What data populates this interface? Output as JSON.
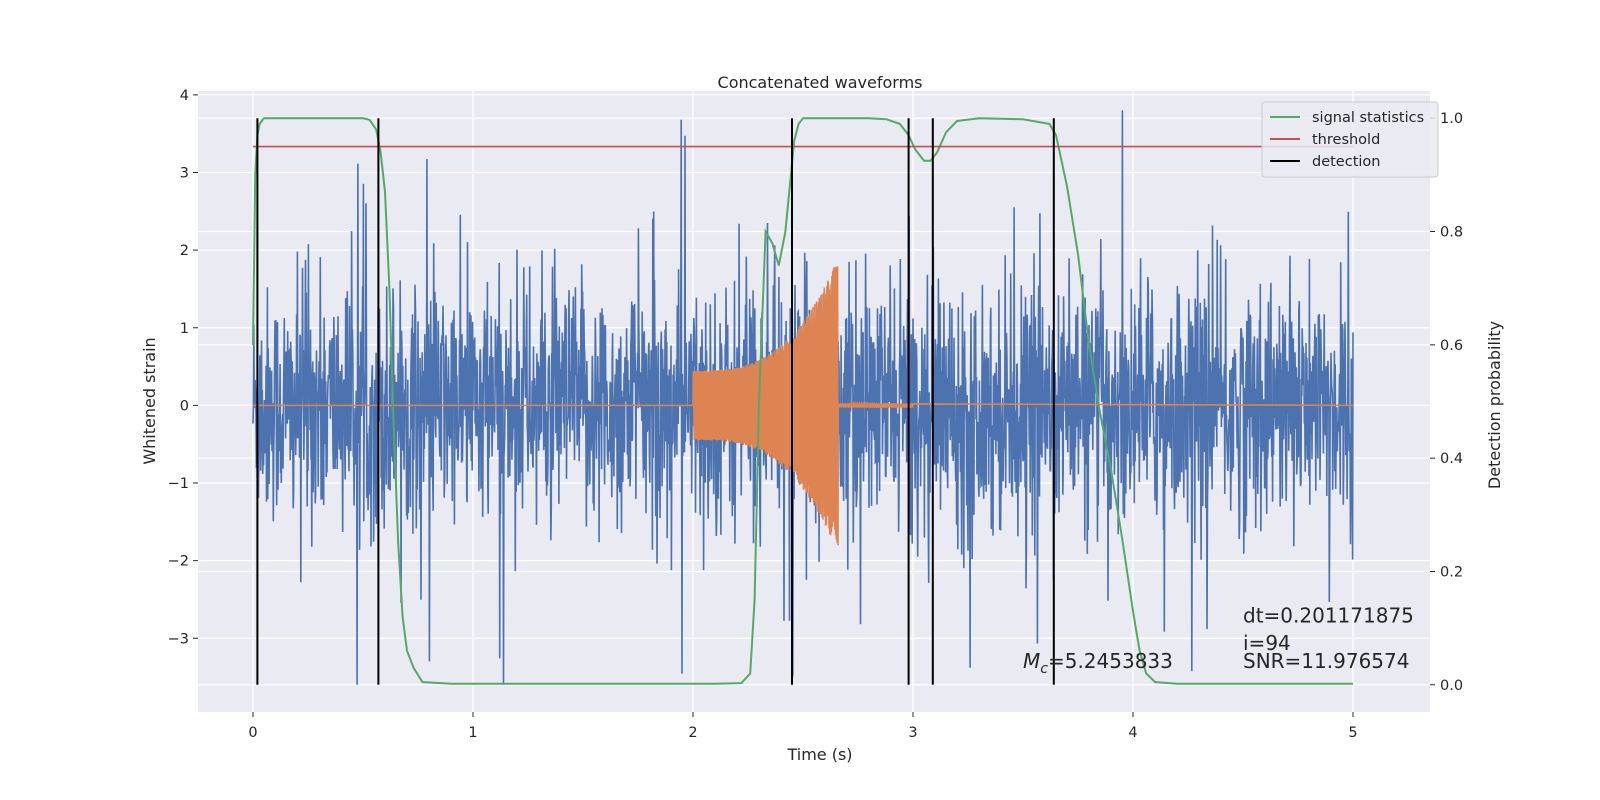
{
  "chart_data": {
    "type": "line",
    "title": "Concatenated waveforms",
    "xlabel": "Time (s)",
    "ylabel": "Whitened strain",
    "y2label": "Detection probability",
    "xlim": [
      -0.25,
      5.35
    ],
    "ylim": [
      -3.95,
      4.05
    ],
    "y2lim": [
      -0.048,
      1.048
    ],
    "x_ticks": [
      0,
      1,
      2,
      3,
      4,
      5
    ],
    "y_ticks": [
      -3,
      -2,
      -1,
      0,
      1,
      2,
      3,
      4
    ],
    "y2_ticks": [
      0.0,
      0.2,
      0.4,
      0.6,
      0.8,
      1.0
    ],
    "x_tick_labels": [
      "0",
      "1",
      "2",
      "3",
      "4",
      "5"
    ],
    "y_tick_labels": [
      "−3",
      "−2",
      "−1",
      "0",
      "1",
      "2",
      "3",
      "4"
    ],
    "y2_tick_labels": [
      "0.0",
      "0.2",
      "0.4",
      "0.6",
      "0.8",
      "1.0"
    ],
    "grid": true,
    "legend_position": "top-right",
    "series": [
      {
        "name": "signal statistics",
        "axis": "right",
        "color": "#55a868",
        "x": [
          0.0,
          0.01,
          0.02,
          0.03,
          0.05,
          0.08,
          0.15,
          0.3,
          0.5,
          0.53,
          0.56,
          0.58,
          0.6,
          0.62,
          0.64,
          0.66,
          0.68,
          0.7,
          0.73,
          0.77,
          0.9,
          1.5,
          2.1,
          2.22,
          2.26,
          2.28,
          2.3,
          2.33,
          2.36,
          2.39,
          2.42,
          2.44,
          2.46,
          2.48,
          2.5,
          2.55,
          2.65,
          2.8,
          2.88,
          2.94,
          2.98,
          3.01,
          3.05,
          3.08,
          3.11,
          3.15,
          3.2,
          3.3,
          3.5,
          3.62,
          3.65,
          3.7,
          3.75,
          3.8,
          3.85,
          3.9,
          3.95,
          4.0,
          4.03,
          4.06,
          4.1,
          4.2,
          5.0
        ],
        "values": [
          0.6,
          0.9,
          0.97,
          0.99,
          1.0,
          1.0,
          1.0,
          1.0,
          1.0,
          0.997,
          0.98,
          0.94,
          0.87,
          0.7,
          0.45,
          0.25,
          0.12,
          0.06,
          0.03,
          0.005,
          0.002,
          0.002,
          0.002,
          0.003,
          0.02,
          0.15,
          0.5,
          0.8,
          0.78,
          0.74,
          0.8,
          0.88,
          0.96,
          0.99,
          1.0,
          1.0,
          1.0,
          1.0,
          0.998,
          0.99,
          0.97,
          0.945,
          0.925,
          0.925,
          0.94,
          0.975,
          0.995,
          1.0,
          0.998,
          0.99,
          0.97,
          0.88,
          0.76,
          0.6,
          0.48,
          0.38,
          0.26,
          0.13,
          0.06,
          0.02,
          0.005,
          0.002,
          0.002
        ]
      },
      {
        "name": "threshold",
        "axis": "right",
        "color": "#c44e52",
        "x": [
          0.0,
          5.0
        ],
        "values": [
          0.95,
          0.95
        ]
      },
      {
        "name": "detection",
        "axis": "right",
        "color": "#000000",
        "x": [
          0.02,
          0.57,
          2.45,
          2.98,
          3.09,
          3.64
        ],
        "values": [
          1.0,
          1.0,
          1.0,
          1.0,
          1.0,
          1.0
        ]
      }
    ],
    "noise_strain": {
      "color": "#4c72b0",
      "x_range": [
        0.0,
        5.0
      ],
      "approx_range": [
        -3.6,
        3.8
      ],
      "description_values": "dense whitened noise around 0"
    },
    "injected_waveform": {
      "color": "#dd8452",
      "x_range": [
        2.0,
        2.66
      ],
      "start_amplitude": 0.45,
      "peak_amplitude": 1.9,
      "ringdown_end": 3.0
    },
    "annotations": [
      {
        "text": "dt=0.201171875",
        "x": 4.5,
        "y": -2.8
      },
      {
        "text": " i=94",
        "x": 4.5,
        "y": -3.15
      },
      {
        "text": "SNR=11.976574",
        "x": 4.5,
        "y": -3.38
      },
      {
        "text_prefix": "M",
        "text_sub": "c",
        "text_suffix": "=5.2453833",
        "x": 3.5,
        "y": -3.38
      }
    ]
  }
}
